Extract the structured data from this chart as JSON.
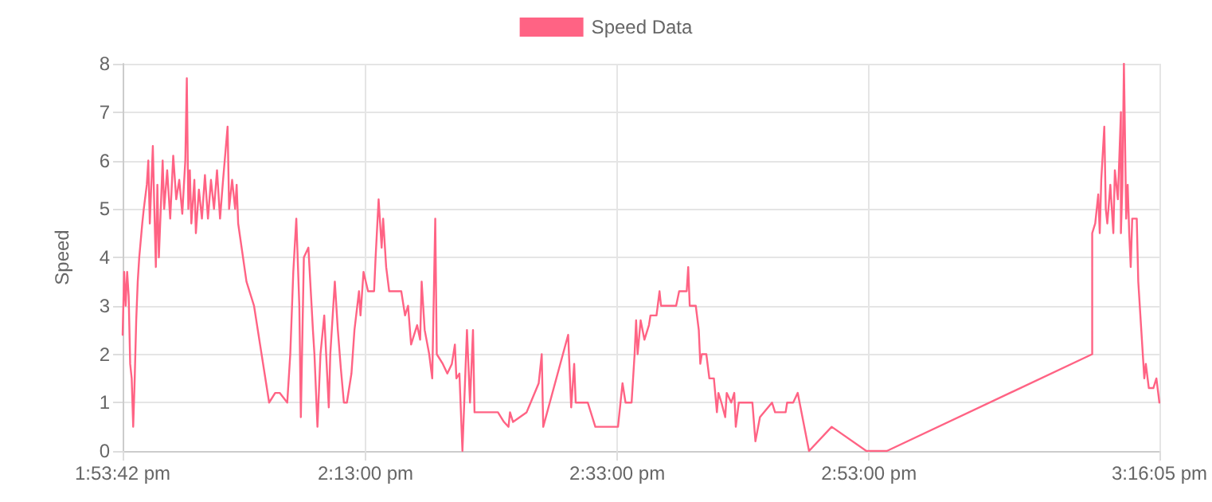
{
  "chart_data": {
    "type": "line",
    "ylabel": "Speed",
    "legend": "top",
    "grid": true,
    "marker": "none",
    "line_style": "solid",
    "xlim": [
      13.895,
      15.268
    ],
    "ylim": [
      0,
      8
    ],
    "xticks": [
      {
        "value": 13.895,
        "label": "1:53:42 pm"
      },
      {
        "value": 14.2167,
        "label": "2:13:00 pm"
      },
      {
        "value": 14.55,
        "label": "2:33:00 pm"
      },
      {
        "value": 14.8833,
        "label": "2:53:00 pm"
      },
      {
        "value": 15.268,
        "label": "3:16:05 pm"
      }
    ],
    "yticks": [
      0,
      1,
      2,
      3,
      4,
      5,
      6,
      7,
      8
    ],
    "x": [
      13.895,
      13.897,
      13.899,
      13.901,
      13.903,
      13.905,
      13.907,
      13.909,
      13.911,
      13.913,
      13.915,
      13.917,
      13.921,
      13.923,
      13.927,
      13.929,
      13.931,
      13.935,
      13.937,
      13.939,
      13.941,
      13.943,
      13.948,
      13.95,
      13.954,
      13.958,
      13.962,
      13.966,
      13.97,
      13.974,
      13.978,
      13.98,
      13.982,
      13.984,
      13.986,
      13.99,
      13.992,
      13.996,
      14.0,
      14.004,
      14.008,
      14.012,
      14.016,
      14.02,
      14.024,
      14.028,
      14.034,
      14.036,
      14.04,
      14.044,
      14.046,
      14.048,
      14.059,
      14.069,
      14.077,
      14.083,
      14.089,
      14.097,
      14.103,
      14.113,
      14.117,
      14.121,
      14.125,
      14.129,
      14.131,
      14.135,
      14.141,
      14.147,
      14.149,
      14.153,
      14.157,
      14.162,
      14.168,
      14.17,
      14.176,
      14.18,
      14.184,
      14.188,
      14.192,
      14.198,
      14.202,
      14.208,
      14.21,
      14.214,
      14.22,
      14.228,
      14.23,
      14.234,
      14.238,
      14.24,
      14.244,
      14.248,
      14.254,
      14.264,
      14.269,
      14.273,
      14.277,
      14.281,
      14.285,
      14.289,
      14.291,
      14.295,
      14.301,
      14.305,
      14.309,
      14.311,
      14.319,
      14.325,
      14.331,
      14.335,
      14.337,
      14.341,
      14.345,
      14.351,
      14.355,
      14.359,
      14.361,
      14.392,
      14.4,
      14.406,
      14.408,
      14.412,
      14.43,
      14.446,
      14.45,
      14.452,
      14.485,
      14.489,
      14.493,
      14.495,
      14.511,
      14.521,
      14.551,
      14.553,
      14.557,
      14.561,
      14.569,
      14.573,
      14.575,
      14.577,
      14.581,
      14.586,
      14.592,
      14.594,
      14.602,
      14.606,
      14.608,
      14.628,
      14.632,
      14.642,
      14.644,
      14.646,
      14.654,
      14.658,
      14.66,
      14.662,
      14.668,
      14.672,
      14.678,
      14.682,
      14.684,
      14.688,
      14.693,
      14.695,
      14.701,
      14.705,
      14.707,
      14.711,
      14.729,
      14.733,
      14.739,
      14.755,
      14.759,
      14.773,
      14.775,
      14.783,
      14.789,
      14.804,
      14.834,
      14.88,
      14.907,
      15.179,
      15.179,
      15.183,
      15.187,
      15.189,
      15.191,
      15.195,
      15.197,
      15.199,
      15.203,
      15.207,
      15.209,
      15.213,
      15.217,
      15.217,
      15.219,
      15.221,
      15.224,
      15.226,
      15.228,
      15.23,
      15.232,
      15.238,
      15.24,
      15.244,
      15.248,
      15.25,
      15.254,
      15.26,
      15.264,
      15.268
    ],
    "series": [
      {
        "name": "Speed Data",
        "color": "#ff6384",
        "values": [
          2.4,
          3.7,
          3.0,
          3.7,
          3.2,
          1.8,
          1.5,
          0.5,
          1.5,
          2.7,
          3.5,
          4.0,
          4.7,
          5.0,
          5.5,
          6.0,
          4.7,
          6.3,
          5.0,
          3.8,
          5.5,
          4.0,
          6.0,
          5.0,
          5.8,
          4.8,
          6.1,
          5.2,
          5.6,
          4.9,
          6.0,
          7.7,
          5.0,
          5.8,
          4.7,
          5.6,
          4.5,
          5.4,
          4.8,
          5.7,
          4.8,
          5.6,
          5.0,
          5.8,
          4.8,
          5.6,
          6.7,
          5.0,
          5.6,
          5.0,
          5.5,
          4.7,
          3.5,
          3.0,
          2.2,
          1.6,
          1.0,
          1.2,
          1.2,
          1.0,
          2.0,
          3.7,
          4.8,
          3.0,
          0.7,
          4.0,
          4.2,
          2.5,
          2.0,
          0.5,
          2.0,
          2.8,
          0.9,
          2.0,
          3.5,
          2.5,
          1.7,
          1.0,
          1.0,
          1.6,
          2.5,
          3.3,
          2.8,
          3.7,
          3.3,
          3.3,
          4.0,
          5.2,
          4.2,
          4.8,
          3.8,
          3.3,
          3.3,
          3.3,
          2.8,
          3.0,
          2.2,
          2.4,
          2.6,
          2.3,
          3.5,
          2.5,
          2.0,
          1.5,
          4.8,
          2.0,
          1.8,
          1.6,
          1.8,
          2.2,
          1.5,
          1.6,
          0.0,
          2.5,
          1.0,
          2.5,
          0.8,
          0.8,
          0.6,
          0.5,
          0.8,
          0.6,
          0.8,
          1.4,
          2.0,
          0.5,
          2.4,
          0.9,
          1.8,
          1.0,
          1.0,
          0.5,
          0.5,
          0.8,
          1.4,
          1.0,
          1.0,
          2.0,
          2.7,
          2.0,
          2.7,
          2.3,
          2.6,
          2.8,
          2.8,
          3.3,
          3.0,
          3.0,
          3.3,
          3.3,
          3.8,
          3.0,
          3.0,
          2.5,
          1.8,
          2.0,
          2.0,
          1.5,
          1.5,
          0.8,
          1.2,
          1.0,
          0.7,
          1.2,
          1.0,
          1.2,
          0.5,
          1.0,
          1.0,
          0.2,
          0.7,
          1.0,
          0.8,
          0.8,
          1.0,
          1.0,
          1.2,
          0.0,
          0.5,
          0.0,
          0.0,
          2.0,
          4.5,
          4.7,
          5.3,
          4.5,
          5.6,
          6.7,
          5.0,
          4.7,
          5.5,
          4.5,
          5.8,
          5.2,
          7.0,
          4.5,
          5.5,
          8.0,
          4.8,
          5.5,
          4.5,
          3.8,
          4.8,
          4.8,
          3.5,
          2.5,
          1.5,
          1.8,
          1.3,
          1.3,
          1.5,
          1.0
        ]
      }
    ]
  }
}
